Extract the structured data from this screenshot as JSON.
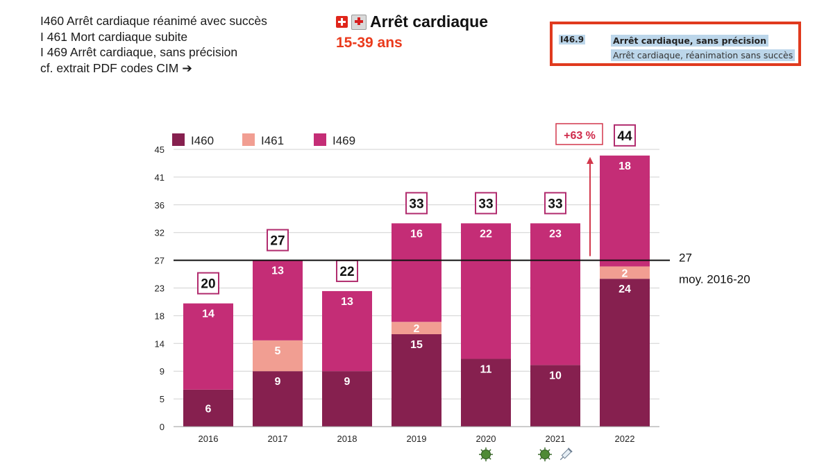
{
  "codes": {
    "line1": "I460 Arrêt cardiaque réanimé avec succès",
    "line2": "I 461 Mort cardiaque subite",
    "line3": "I 469 Arrêt cardiaque, sans précision",
    "line4": "cf. extrait PDF codes CIM ➔"
  },
  "header": {
    "title": "Arrêt cardiaque",
    "subtitle": "15-39 ans",
    "flag_icon": "swiss-flag-icon",
    "hospital_icon": "hospital-icon"
  },
  "pdf_excerpt": {
    "code": "I46.9",
    "line1": "Arrêt cardiaque, sans précision",
    "line2": "Arrêt cardiaque, réanimation sans succès"
  },
  "colors": {
    "I460": "#86204f",
    "I461": "#f19e92",
    "I469": "#c42d76",
    "box_border": "#b12c6e",
    "highlight": "#e03a1e"
  },
  "chart_data": {
    "type": "bar",
    "stacked": true,
    "categories": [
      "2016",
      "2017",
      "2018",
      "2019",
      "2020",
      "2021",
      "2022"
    ],
    "series": [
      {
        "name": "I460",
        "values": [
          6,
          9,
          9,
          15,
          11,
          10,
          24
        ]
      },
      {
        "name": "I461",
        "values": [
          0,
          5,
          0,
          2,
          0,
          0,
          2
        ]
      },
      {
        "name": "I469",
        "values": [
          14,
          13,
          13,
          16,
          22,
          23,
          18
        ]
      }
    ],
    "totals": [
      20,
      27,
      22,
      33,
      33,
      33,
      44
    ],
    "ylim": [
      0,
      45
    ],
    "yticks": [
      "0",
      "5",
      "9",
      "14",
      "18",
      "23",
      "27",
      "32",
      "36",
      "41",
      "45"
    ],
    "reference_line": {
      "value": 27,
      "label": "27",
      "sublabel": "moy. 2016-20"
    },
    "annotation": {
      "text": "+63 %",
      "from": 27,
      "to": 44,
      "category": "2021"
    },
    "category_icons": {
      "2020": [
        "virus-icon"
      ],
      "2021": [
        "virus-icon",
        "syringe-icon"
      ]
    },
    "legend_position": "top-left",
    "title": "Arrêt cardiaque",
    "xlabel": "",
    "ylabel": ""
  }
}
